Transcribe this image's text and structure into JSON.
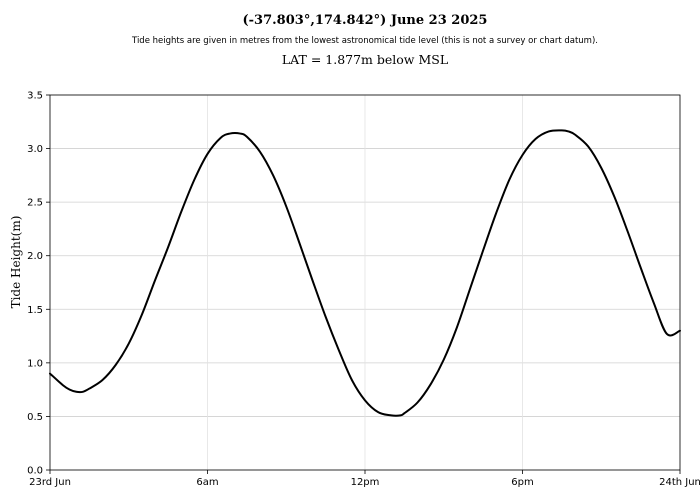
{
  "chart_data": {
    "type": "line",
    "title": "(-37.803°,174.842°) June 23 2025",
    "subtitle": "Tide heights are given in metres from the lowest astronomical tide level (this is not a survey or chart datum).",
    "annotation": "LAT = 1.877m below MSL",
    "xlabel": "",
    "ylabel": "Tide Height(m)",
    "xlim": [
      0,
      24
    ],
    "ylim": [
      0,
      3.5
    ],
    "x_ticks": [
      {
        "value": 0,
        "label": "23rd Jun"
      },
      {
        "value": 6,
        "label": "6am"
      },
      {
        "value": 12,
        "label": "12pm"
      },
      {
        "value": 18,
        "label": "6pm"
      },
      {
        "value": 24,
        "label": "24th Jun"
      }
    ],
    "y_ticks": [
      {
        "value": 0.0,
        "label": "0.0"
      },
      {
        "value": 0.5,
        "label": "0.5"
      },
      {
        "value": 1.0,
        "label": "1.0"
      },
      {
        "value": 1.5,
        "label": "1.5"
      },
      {
        "value": 2.0,
        "label": "2.0"
      },
      {
        "value": 2.5,
        "label": "2.5"
      },
      {
        "value": 3.0,
        "label": "3.0"
      },
      {
        "value": 3.5,
        "label": "3.5"
      }
    ],
    "grid": true,
    "series": [
      {
        "color": "#000000",
        "x": [
          0,
          0.5,
          0.75,
          1.0,
          1.25,
          1.5,
          2.0,
          2.5,
          3.0,
          3.5,
          4.0,
          4.5,
          5.0,
          5.5,
          6.0,
          6.5,
          6.85,
          7.25,
          7.5,
          8.0,
          8.5,
          9.0,
          9.5,
          10.0,
          10.5,
          11.0,
          11.5,
          12.0,
          12.5,
          13.0,
          13.35,
          13.5,
          14.0,
          14.5,
          15.0,
          15.5,
          16.0,
          16.5,
          17.0,
          17.5,
          18.0,
          18.5,
          19.0,
          19.5,
          19.75,
          20.0,
          20.5,
          21.0,
          21.5,
          22.0,
          22.5,
          23.0,
          23.5,
          24.0
        ],
        "y": [
          0.9,
          0.79,
          0.75,
          0.73,
          0.73,
          0.76,
          0.84,
          0.98,
          1.18,
          1.45,
          1.77,
          2.08,
          2.41,
          2.71,
          2.95,
          3.1,
          3.14,
          3.14,
          3.11,
          2.97,
          2.75,
          2.46,
          2.12,
          1.77,
          1.43,
          1.12,
          0.84,
          0.65,
          0.54,
          0.51,
          0.51,
          0.53,
          0.63,
          0.8,
          1.03,
          1.33,
          1.69,
          2.05,
          2.4,
          2.71,
          2.94,
          3.09,
          3.16,
          3.17,
          3.16,
          3.13,
          3.02,
          2.82,
          2.55,
          2.23,
          1.89,
          1.56,
          1.27,
          1.3
        ]
      }
    ]
  }
}
